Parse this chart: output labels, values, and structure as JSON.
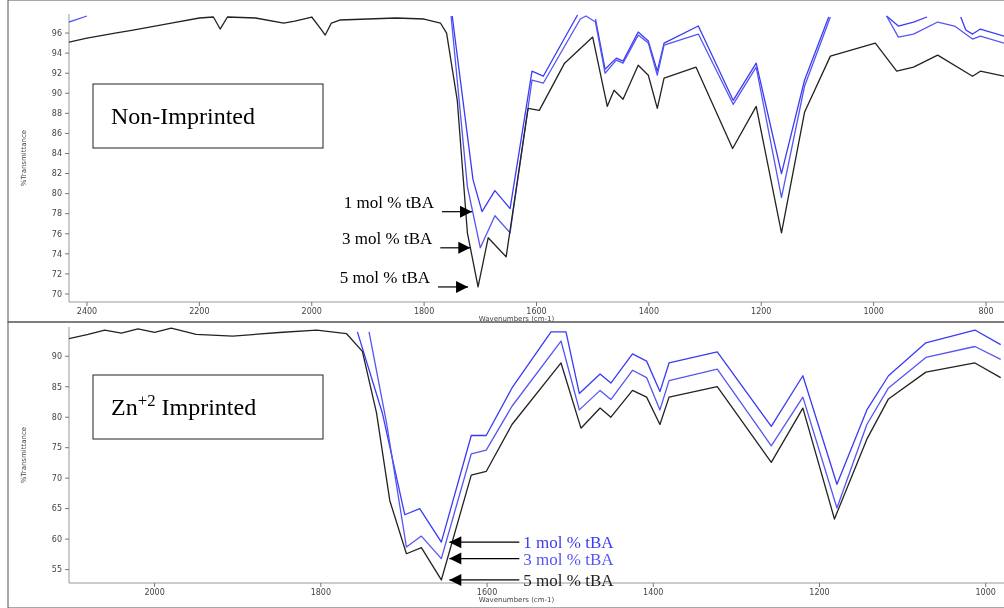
{
  "chart_data": [
    {
      "type": "line",
      "title": "Non-Imprinted",
      "xlabel": "Wavenumbers (cm-1)",
      "ylabel": "%Transmittance",
      "xlim": [
        2432,
        768
      ],
      "xticks": [
        2400,
        2200,
        2000,
        1800,
        1600,
        1400,
        1200,
        1000,
        800
      ],
      "ylim": [
        69.2,
        97.9
      ],
      "yticks": [
        70,
        72,
        74,
        76,
        78,
        80,
        82,
        84,
        86,
        88,
        90,
        92,
        94,
        96
      ],
      "series": [
        {
          "name": "1 mol % tBA",
          "color": "#3b3bf5",
          "x": [
            1750,
            1713,
            1697,
            1674,
            1647,
            1608,
            1588,
            1527,
            1520,
            1495,
            1478,
            1458,
            1446,
            1419,
            1401,
            1385,
            1373,
            1312,
            1250,
            1209,
            1164,
            1123,
            1080,
            1070,
            977,
            956,
            929,
            905,
            895,
            845,
            836,
            824,
            810,
            768
          ],
          "values": [
            97.7,
            81.4,
            78.2,
            80.3,
            78.5,
            92.2,
            91.7,
            97.8,
            null,
            97.4,
            92.4,
            93.5,
            93.2,
            96.1,
            95.2,
            92.2,
            95,
            96.7,
            89.3,
            93,
            82,
            91.3,
            97.6,
            null,
            97.7,
            96.7,
            97.1,
            97.6,
            null,
            97.6,
            96.3,
            95.9,
            96.4,
            95.7
          ]
        },
        {
          "name": "3 mol % tBA",
          "color": "#5555f2",
          "x": [
            2432,
            2400,
            2390,
            1752,
            1723,
            1700,
            1674,
            1647,
            1608,
            1588,
            1522,
            1512,
            1495,
            1478,
            1458,
            1446,
            1419,
            1401,
            1385,
            1373,
            1312,
            1250,
            1209,
            1164,
            1123,
            1077,
            1070,
            977,
            956,
            929,
            886,
            856,
            824,
            810,
            768
          ],
          "values": [
            97.1,
            97.7,
            null,
            97.7,
            80.7,
            74.6,
            77.8,
            76.1,
            91.3,
            91,
            97.4,
            97.7,
            97.1,
            92,
            93.3,
            93,
            95.8,
            95,
            91.8,
            94.8,
            95.9,
            88.9,
            92.6,
            79.6,
            90.7,
            97.6,
            null,
            97.7,
            95.6,
            95.9,
            97.1,
            96.7,
            95.4,
            95.7,
            95
          ]
        },
        {
          "name": "5 mol % tBA",
          "color": "#222222",
          "x": [
            2432,
            2400,
            2350,
            2318,
            2250,
            2200,
            2175,
            2163,
            2150,
            2100,
            2050,
            2030,
            2000,
            1985,
            1976,
            1965,
            1950,
            1850,
            1800,
            1771,
            1760,
            1741,
            1723,
            1704,
            1686,
            1654,
            1615,
            1595,
            1550,
            1500,
            1474,
            1462,
            1446,
            1419,
            1401,
            1385,
            1373,
            1316,
            1251,
            1209,
            1164,
            1123,
            1077,
            997,
            959,
            929,
            886,
            824,
            810,
            768
          ],
          "values": [
            95.1,
            95.5,
            96,
            96.3,
            97,
            97.5,
            97.6,
            96.4,
            97.6,
            97.5,
            97,
            97.2,
            97.6,
            96.5,
            95.8,
            97,
            97.3,
            97.5,
            97.4,
            97,
            96,
            89.3,
            76.1,
            70.7,
            75.6,
            73.7,
            88.5,
            88.3,
            93,
            95.6,
            88.7,
            90.3,
            89.4,
            92.8,
            91.8,
            88.5,
            91.5,
            92.6,
            84.5,
            88.7,
            76.1,
            88.1,
            93.7,
            95,
            92.2,
            92.6,
            93.8,
            91.7,
            92.2,
            91.7
          ]
        }
      ]
    },
    {
      "type": "line",
      "title": "Zn$^{+2}$ Imprinted",
      "xlabel": "Wavenumbers (cm-1)",
      "ylabel": "%Transmittance",
      "xlim": [
        2103,
        978
      ],
      "xticks": [
        2000,
        1800,
        1600,
        1400,
        1200,
        1000
      ],
      "ylim": [
        52.8,
        94.8
      ],
      "yticks": [
        55,
        60,
        65,
        70,
        75,
        80,
        85,
        90
      ],
      "series": [
        {
          "name": "1 mol % tBA",
          "color": "#3b3bf5",
          "x": [
            1756,
            1726,
            1699,
            1681,
            1655,
            1619,
            1601,
            1570,
            1523,
            1505,
            1489,
            1464,
            1451,
            1425,
            1408,
            1392,
            1381,
            1323,
            1258,
            1220,
            1179,
            1143,
            1117,
            1072,
            1013,
            982
          ],
          "values": [
            94,
            80.7,
            64,
            65,
            59.5,
            77,
            77,
            84.8,
            94,
            94,
            83.9,
            87.1,
            85.6,
            90.4,
            89.2,
            84.2,
            88.9,
            90.7,
            78.5,
            86.8,
            69,
            81.2,
            86.8,
            92.2,
            94.3,
            91.9
          ]
        },
        {
          "name": "3 mol % tBA",
          "color": "#5555f2",
          "x": [
            1742,
            1721,
            1697,
            1679,
            1655,
            1619,
            1601,
            1570,
            1511,
            1489,
            1464,
            1451,
            1425,
            1408,
            1392,
            1381,
            1323,
            1258,
            1220,
            1179,
            1143,
            1117,
            1072,
            1013,
            982
          ],
          "values": [
            94,
            79.1,
            58.7,
            60.5,
            56.8,
            74,
            74.6,
            81.8,
            92.5,
            81.2,
            84.4,
            82.9,
            87.7,
            86.5,
            81.2,
            86,
            87.9,
            75.3,
            83.3,
            65.1,
            78.8,
            84.8,
            89.8,
            91.6,
            89.5
          ]
        },
        {
          "name": "5 mol % tBA",
          "color": "#222222",
          "x": [
            2103,
            2080,
            2060,
            2040,
            2020,
            2000,
            1980,
            1950,
            1906,
            1850,
            1805,
            1769,
            1750,
            1733,
            1717,
            1697,
            1679,
            1655,
            1619,
            1601,
            1570,
            1511,
            1487,
            1464,
            1451,
            1425,
            1408,
            1392,
            1381,
            1323,
            1258,
            1220,
            1182,
            1143,
            1117,
            1072,
            1013,
            982
          ],
          "values": [
            92.9,
            93.6,
            94.3,
            93.8,
            94.5,
            93.9,
            94.6,
            93.6,
            93.3,
            93.9,
            94.3,
            93.7,
            90.8,
            80.7,
            66.3,
            57.6,
            58.6,
            53.3,
            70.5,
            71.1,
            78.8,
            88.9,
            78.2,
            81.5,
            80,
            84.4,
            83.3,
            78.8,
            83.3,
            85,
            72.6,
            81.5,
            63.3,
            76.4,
            83,
            87.4,
            88.9,
            86.5
          ]
        }
      ]
    }
  ]
}
